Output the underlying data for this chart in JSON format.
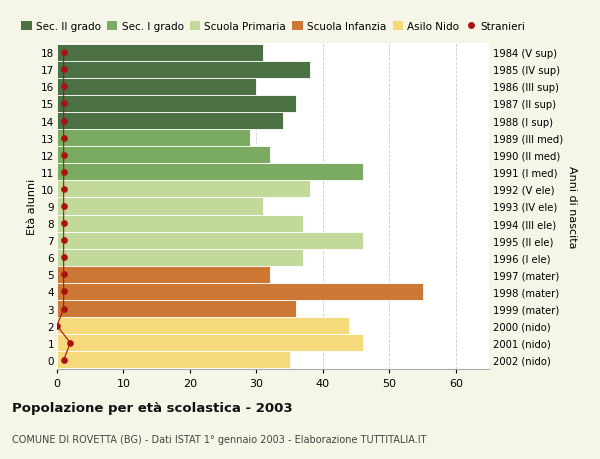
{
  "ages": [
    18,
    17,
    16,
    15,
    14,
    13,
    12,
    11,
    10,
    9,
    8,
    7,
    6,
    5,
    4,
    3,
    2,
    1,
    0
  ],
  "values": [
    31,
    38,
    30,
    36,
    34,
    29,
    32,
    46,
    38,
    31,
    37,
    46,
    37,
    32,
    55,
    36,
    44,
    46,
    35
  ],
  "stranieri_x": [
    1,
    1,
    1,
    1,
    1,
    1,
    1,
    1,
    1,
    1,
    1,
    1,
    1,
    1,
    1,
    1,
    0,
    2,
    1
  ],
  "right_labels": [
    "1984 (V sup)",
    "1985 (IV sup)",
    "1986 (III sup)",
    "1987 (II sup)",
    "1988 (I sup)",
    "1989 (III med)",
    "1990 (II med)",
    "1991 (I med)",
    "1992 (V ele)",
    "1993 (IV ele)",
    "1994 (III ele)",
    "1995 (II ele)",
    "1996 (I ele)",
    "1997 (mater)",
    "1998 (mater)",
    "1999 (mater)",
    "2000 (nido)",
    "2001 (nido)",
    "2002 (nido)"
  ],
  "bar_colors": [
    "#4a7043",
    "#4a7043",
    "#4a7043",
    "#4a7043",
    "#4a7043",
    "#7aab60",
    "#7aab60",
    "#7aab60",
    "#c3d99a",
    "#c3d99a",
    "#c3d99a",
    "#c3d99a",
    "#c3d99a",
    "#cc7733",
    "#cc7733",
    "#cc7733",
    "#f5d97a",
    "#f5d97a",
    "#f5d97a"
  ],
  "legend_labels": [
    "Sec. II grado",
    "Sec. I grado",
    "Scuola Primaria",
    "Scuola Infanzia",
    "Asilo Nido",
    "Stranieri"
  ],
  "legend_colors": [
    "#4a7043",
    "#7aab60",
    "#c3d99a",
    "#cc7733",
    "#f5d97a",
    "#aa1111"
  ],
  "color_stranieri": "#aa1111",
  "ylabel_left": "Età alunni",
  "ylabel_right": "Anni di nascita",
  "title": "Popolazione per età scolastica - 2003",
  "subtitle": "COMUNE DI ROVETTA (BG) - Dati ISTAT 1° gennaio 2003 - Elaborazione TUTTITALIA.IT",
  "xlim": [
    0,
    65
  ],
  "ylim_min": -0.55,
  "ylim_max": 18.55,
  "fig_bg": "#f5f5e8",
  "plot_bg": "#ffffff",
  "xticks": [
    0,
    10,
    20,
    30,
    40,
    50,
    60
  ]
}
